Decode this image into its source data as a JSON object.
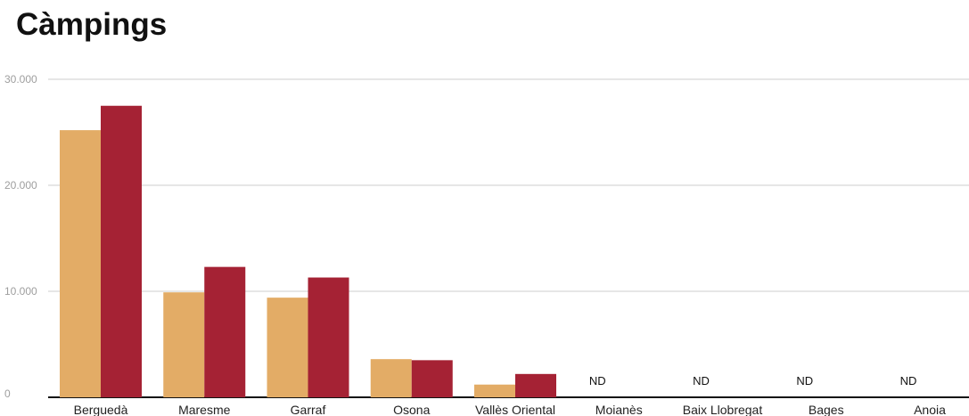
{
  "chart_data": {
    "type": "bar",
    "title": "Càmpings",
    "categories": [
      "Berguedà",
      "Maresme",
      "Garraf",
      "Osona",
      "Vallès Oriental",
      "Moianès",
      "Baix Llobregat",
      "Bages",
      "Anoia"
    ],
    "series": [
      {
        "color": "#e3ac66",
        "values": [
          25200,
          9900,
          9400,
          3600,
          1200,
          null,
          null,
          null,
          null
        ]
      },
      {
        "color": "#a52234",
        "values": [
          27500,
          12300,
          11300,
          3500,
          2200,
          null,
          null,
          null,
          null
        ]
      }
    ],
    "missing_label": "ND",
    "ylim": [
      0,
      30000
    ],
    "yticks": [
      0,
      10000,
      20000,
      30000
    ],
    "ytick_labels": [
      "0",
      "10.000",
      "20.000",
      "30.000"
    ],
    "grid": true,
    "legend": "none"
  }
}
